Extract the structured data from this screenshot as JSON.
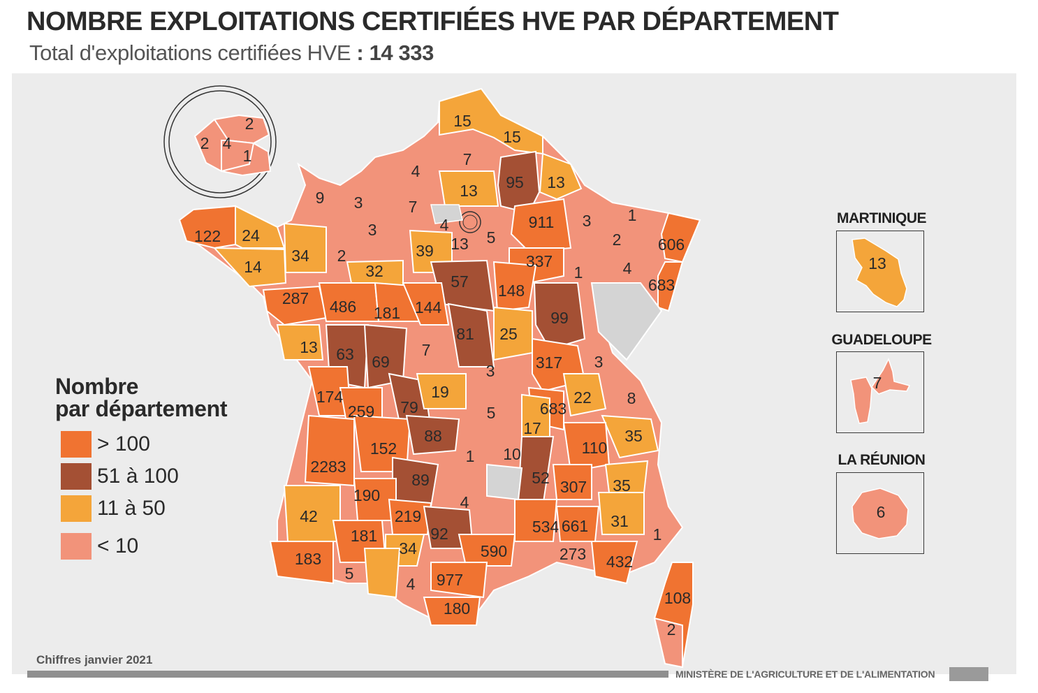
{
  "title": "NOMBRE EXPLOITATIONS CERTIFIÉES HVE PAR DÉPARTEMENT",
  "subtitle": {
    "text": "Total d'exploitations certifiées HVE",
    "separator": " : ",
    "total": "14 333"
  },
  "colors": {
    "gt100": "#f07331",
    "r51_100": "#a45034",
    "r11_50": "#f4a53a",
    "lt10": "#f2937a",
    "no_data": "#d4d4d4",
    "panel": "#ececec"
  },
  "legend": {
    "title_line1": "Nombre",
    "title_line2": "par département",
    "items": [
      {
        "label": "> 100",
        "color_key": "gt100"
      },
      {
        "label": "51 à 100",
        "color_key": "r51_100"
      },
      {
        "label": "11 à 50",
        "color_key": "r11_50"
      },
      {
        "label": "< 10",
        "color_key": "lt10"
      }
    ]
  },
  "insets": [
    {
      "name": "MARTINIQUE",
      "value": "13"
    },
    {
      "name": "GUADELOUPE",
      "value": "7"
    },
    {
      "name": "LA RÉUNION",
      "value": "6"
    }
  ],
  "paris_inset_values": [
    "2",
    "2",
    "4",
    "1"
  ],
  "department_values": [
    "15",
    "15",
    "7",
    "4",
    "13",
    "95",
    "13",
    "9",
    "3",
    "7",
    "3",
    "4",
    "13",
    "5",
    "911",
    "3",
    "1",
    "2",
    "606",
    "122",
    "24",
    "34",
    "2",
    "39",
    "14",
    "32",
    "57",
    "337",
    "1",
    "4",
    "683",
    "287",
    "486",
    "181",
    "144",
    "148",
    "99",
    "13",
    "63",
    "69",
    "7",
    "81",
    "25",
    "317",
    "3",
    "174",
    "259",
    "19",
    "79",
    "3",
    "22",
    "8",
    "5",
    "683",
    "17",
    "35",
    "88",
    "152",
    "110",
    "1",
    "10",
    "2283",
    "52",
    "307",
    "35",
    "89",
    "190",
    "4",
    "219",
    "42",
    "534",
    "661",
    "31",
    "181",
    "34",
    "92",
    "590",
    "1",
    "273",
    "432",
    "183",
    "5",
    "4",
    "977",
    "180",
    "108",
    "2"
  ],
  "source": "Chiffres janvier 2021",
  "ministry": "MINISTÈRE DE L'AGRICULTURE ET DE L'ALIMENTATION"
}
